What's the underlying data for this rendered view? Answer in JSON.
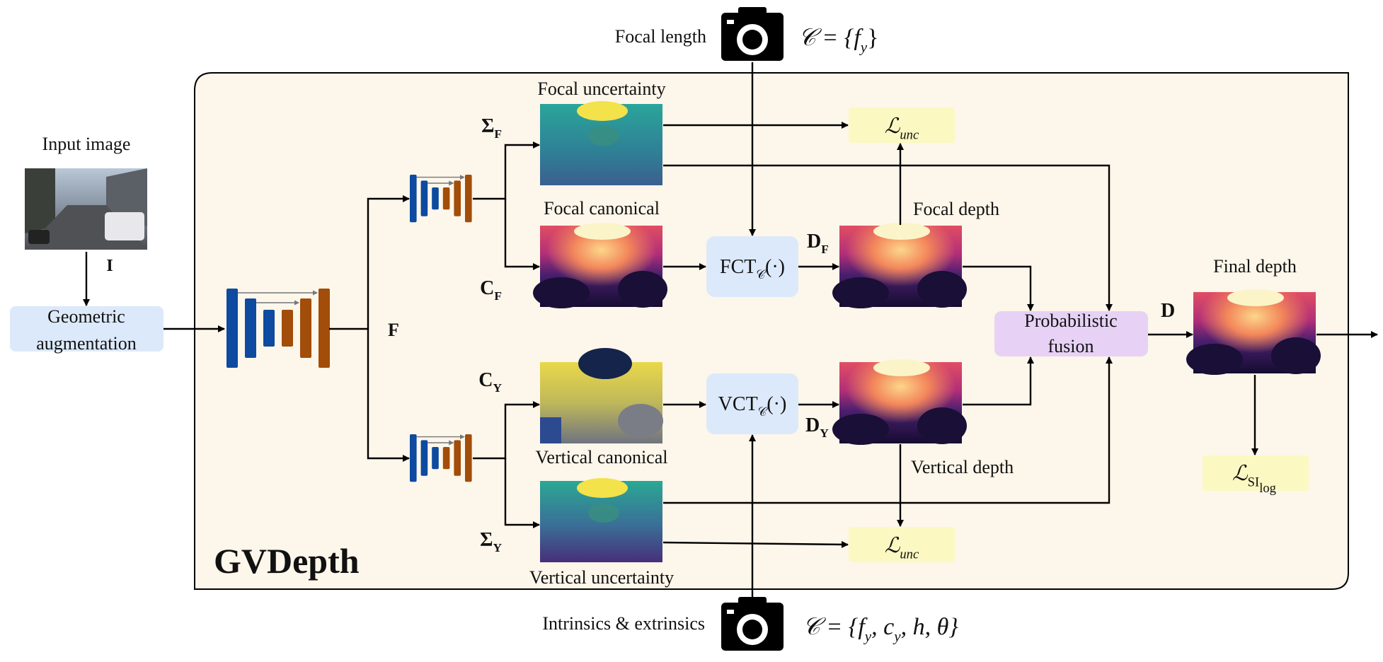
{
  "title": "GVDepth",
  "labels": {
    "input_image": "Input image",
    "image_var": "I",
    "geo_aug_line1": "Geometric",
    "geo_aug_line2": "augmentation",
    "features": "F",
    "focal_uncertainty": "Focal uncertainty",
    "focal_canonical": "Focal canonical",
    "focal_depth": "Focal depth",
    "vertical_canonical": "Vertical canonical",
    "vertical_uncertainty": "Vertical uncertainty",
    "vertical_depth": "Vertical depth",
    "final_depth": "Final depth",
    "focal_length": "Focal length",
    "intrinsics": "Intrinsics & extrinsics",
    "prob_fusion_line1": "Probabilistic",
    "prob_fusion_line2": "fusion"
  },
  "math": {
    "sigma": "Σ",
    "sub_f": "F",
    "sub_y": "Y",
    "c_bold": "C",
    "d_bold": "D",
    "loss_script": "ℒ",
    "loss_unc_sub": "unc",
    "loss_si": "SI",
    "loss_log": "log",
    "fct": "FCT",
    "vct": "VCT",
    "cal_c": "𝒞",
    "dot_arg": "(·)",
    "camera_set_focal": "𝒞 = {f",
    "fy_sub": "y",
    "camera_set_focal_end": "}",
    "camera_set_full": "𝒞 = {f",
    "camera_set_full_mid": ", c",
    "camera_set_full_end": ", h, θ}"
  },
  "colors": {
    "panel_bg": "#fdf6ea",
    "aug_box": "#dce9fa",
    "fct_box": "#dce9fa",
    "fusion_box": "#e7d2f5",
    "loss_box": "#fbf8c2",
    "encoder_blue": "#0d4aa0",
    "decoder_orange": "#a24d0a"
  }
}
